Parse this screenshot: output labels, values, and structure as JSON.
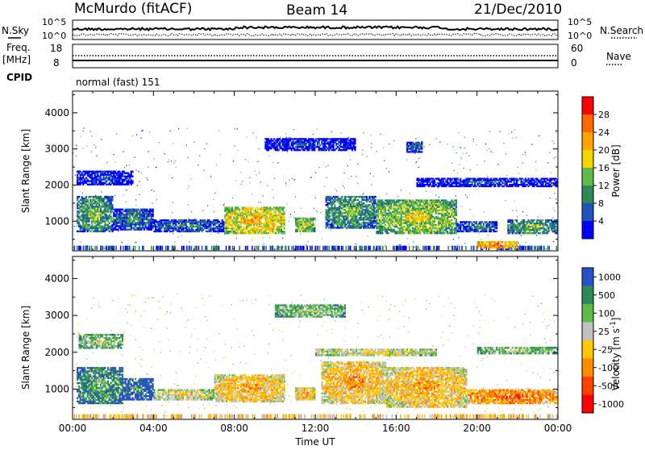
{
  "header": {
    "station": "McMurdo (fitACF)",
    "beam": "Beam 14",
    "date": "21/Dec/2010"
  },
  "top_panels": {
    "left_labels": {
      "nsky": "N.Sky",
      "freq": "Freq.",
      "freq_unit": "[MHz]",
      "cpid": "CPID"
    },
    "right_labels": {
      "nsearch": "N.Search",
      "nave": "Nave"
    },
    "noise_ticks_left": [
      "10^5",
      "10^0"
    ],
    "noise_ticks_right": [
      "10^5",
      "10^0"
    ],
    "freq_ticks": [
      "18",
      "8"
    ],
    "nave_ticks": [
      "60",
      "0"
    ],
    "cpid_text": "normal (fast) 151"
  },
  "colors": {
    "power": [
      "#0000ff",
      "#1f55b8",
      "#2e8b57",
      "#5dbb48",
      "#f5d600",
      "#ffa500",
      "#ff6a00",
      "#ff0000"
    ],
    "velocity": [
      "#2850c8",
      "#2e8b57",
      "#5dbb48",
      "#c0c0c0",
      "#ffc800",
      "#ff8c00",
      "#ff4000",
      "#ff0000"
    ]
  },
  "chart_data": [
    {
      "type": "heatmap",
      "panel": "power",
      "ylabel": "Slant Range [km]",
      "ylim": [
        180,
        4600
      ],
      "y_ticks": [
        "1000",
        "2000",
        "3000",
        "4000"
      ],
      "xlim": [
        "00:00",
        "24:00"
      ],
      "colorbar": {
        "label": "Power [dB]",
        "ticks": [
          "4",
          "8",
          "12",
          "16",
          "20",
          "24",
          "28"
        ]
      },
      "echo_regions": [
        {
          "t0": 0.2,
          "t1": 2.0,
          "r0": 700,
          "r1": 1700,
          "level": 3
        },
        {
          "t0": 2.0,
          "t1": 4.0,
          "r0": 750,
          "r1": 1350,
          "level": 2
        },
        {
          "t0": 4.0,
          "t1": 7.5,
          "r0": 700,
          "r1": 1050,
          "level": 2
        },
        {
          "t0": 7.5,
          "t1": 10.5,
          "r0": 650,
          "r1": 1400,
          "level": 5
        },
        {
          "t0": 11.0,
          "t1": 12.0,
          "r0": 700,
          "r1": 1100,
          "level": 4
        },
        {
          "t0": 12.5,
          "t1": 15.0,
          "r0": 800,
          "r1": 1700,
          "level": 3
        },
        {
          "t0": 15.0,
          "t1": 19.0,
          "r0": 650,
          "r1": 1600,
          "level": 4
        },
        {
          "t0": 19.0,
          "t1": 21.0,
          "r0": 700,
          "r1": 1000,
          "level": 2
        },
        {
          "t0": 21.5,
          "t1": 24.0,
          "r0": 650,
          "r1": 1050,
          "level": 3
        },
        {
          "t0": 20.0,
          "t1": 22.0,
          "r0": 250,
          "r1": 450,
          "level": 6
        },
        {
          "t0": 9.5,
          "t1": 14.0,
          "r0": 2950,
          "r1": 3300,
          "level": 1
        },
        {
          "t0": 16.5,
          "t1": 17.3,
          "r0": 2900,
          "r1": 3200,
          "level": 2
        },
        {
          "t0": 17.0,
          "t1": 24.0,
          "r0": 1950,
          "r1": 2200,
          "level": 1
        },
        {
          "t0": 0.2,
          "t1": 3.0,
          "r0": 2000,
          "r1": 2400,
          "level": 1
        }
      ]
    },
    {
      "type": "heatmap",
      "panel": "velocity",
      "ylabel": "Slant Range [km]",
      "ylim": [
        180,
        4600
      ],
      "y_ticks": [
        "1000",
        "2000",
        "3000",
        "4000"
      ],
      "xlim": [
        "00:00",
        "24:00"
      ],
      "xlabel": "Time UT",
      "x_ticks": [
        "00:00",
        "04:00",
        "08:00",
        "12:00",
        "16:00",
        "20:00",
        "00:00"
      ],
      "colorbar": {
        "label": "Velocity [m s",
        "label_superscript": "-1",
        "label_close": "]",
        "ticks": [
          "1000",
          "500",
          "100",
          "25",
          "-25",
          "-100",
          "-500",
          "-1000"
        ]
      },
      "echo_regions": [
        {
          "t0": 0.2,
          "t1": 2.5,
          "r0": 600,
          "r1": 1600,
          "level": 2
        },
        {
          "t0": 2.5,
          "t1": 4.0,
          "r0": 700,
          "r1": 1300,
          "level": 1
        },
        {
          "t0": 4.0,
          "t1": 7.0,
          "r0": 700,
          "r1": 1000,
          "level": 4
        },
        {
          "t0": 7.0,
          "t1": 10.5,
          "r0": 650,
          "r1": 1400,
          "level": 5
        },
        {
          "t0": 11.0,
          "t1": 12.0,
          "r0": 700,
          "r1": 1050,
          "level": 5
        },
        {
          "t0": 12.3,
          "t1": 15.5,
          "r0": 600,
          "r1": 1750,
          "level": 5
        },
        {
          "t0": 15.5,
          "t1": 19.5,
          "r0": 500,
          "r1": 1600,
          "level": 5
        },
        {
          "t0": 19.5,
          "t1": 24.0,
          "r0": 600,
          "r1": 1000,
          "level": 6
        },
        {
          "t0": 10.0,
          "t1": 13.5,
          "r0": 2950,
          "r1": 3300,
          "level": 3
        },
        {
          "t0": 0.3,
          "t1": 2.5,
          "r0": 2100,
          "r1": 2500,
          "level": 3
        },
        {
          "t0": 12.0,
          "t1": 18.0,
          "r0": 1900,
          "r1": 2100,
          "level": 4
        },
        {
          "t0": 20.0,
          "t1": 24.0,
          "r0": 1950,
          "r1": 2150,
          "level": 3
        }
      ]
    }
  ]
}
